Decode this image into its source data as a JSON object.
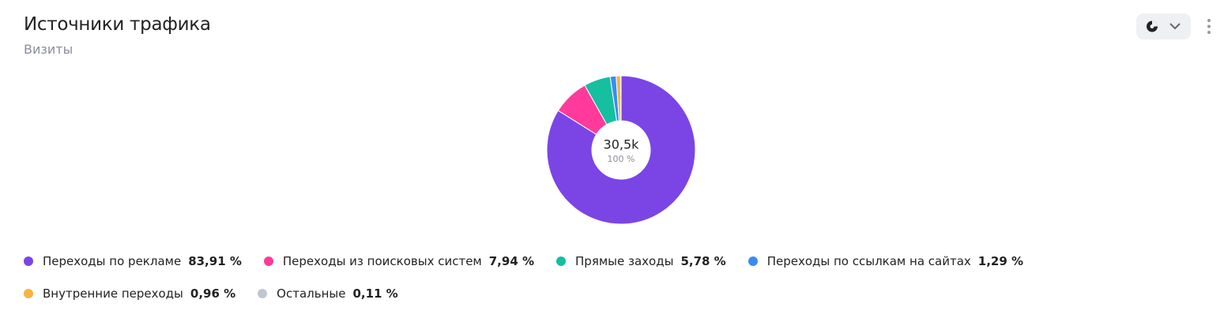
{
  "chart_data": {
    "type": "pie",
    "title": "Источники трафика",
    "subtitle": "Визиты",
    "center": {
      "value": 30500,
      "label": "30,5k"
    },
    "center_share": {
      "value": 100,
      "label": "100 %"
    },
    "categories": [
      "Переходы по рекламе",
      "Переходы из поисковых систем",
      "Прямые заходы",
      "Переходы по ссылкам на сайтах",
      "Внутренние переходы",
      "Остальные"
    ],
    "values": [
      83.91,
      7.94,
      5.78,
      1.29,
      0.96,
      0.11
    ],
    "value_labels": [
      "83,91 %",
      "7,94 %",
      "5,78 %",
      "1,29 %",
      "0,96 %",
      "0,11 %"
    ],
    "colors": [
      "#7b45e6",
      "#ff3a9a",
      "#15bfa0",
      "#3a8bf0",
      "#f7b343",
      "#c0c6d1"
    ]
  }
}
